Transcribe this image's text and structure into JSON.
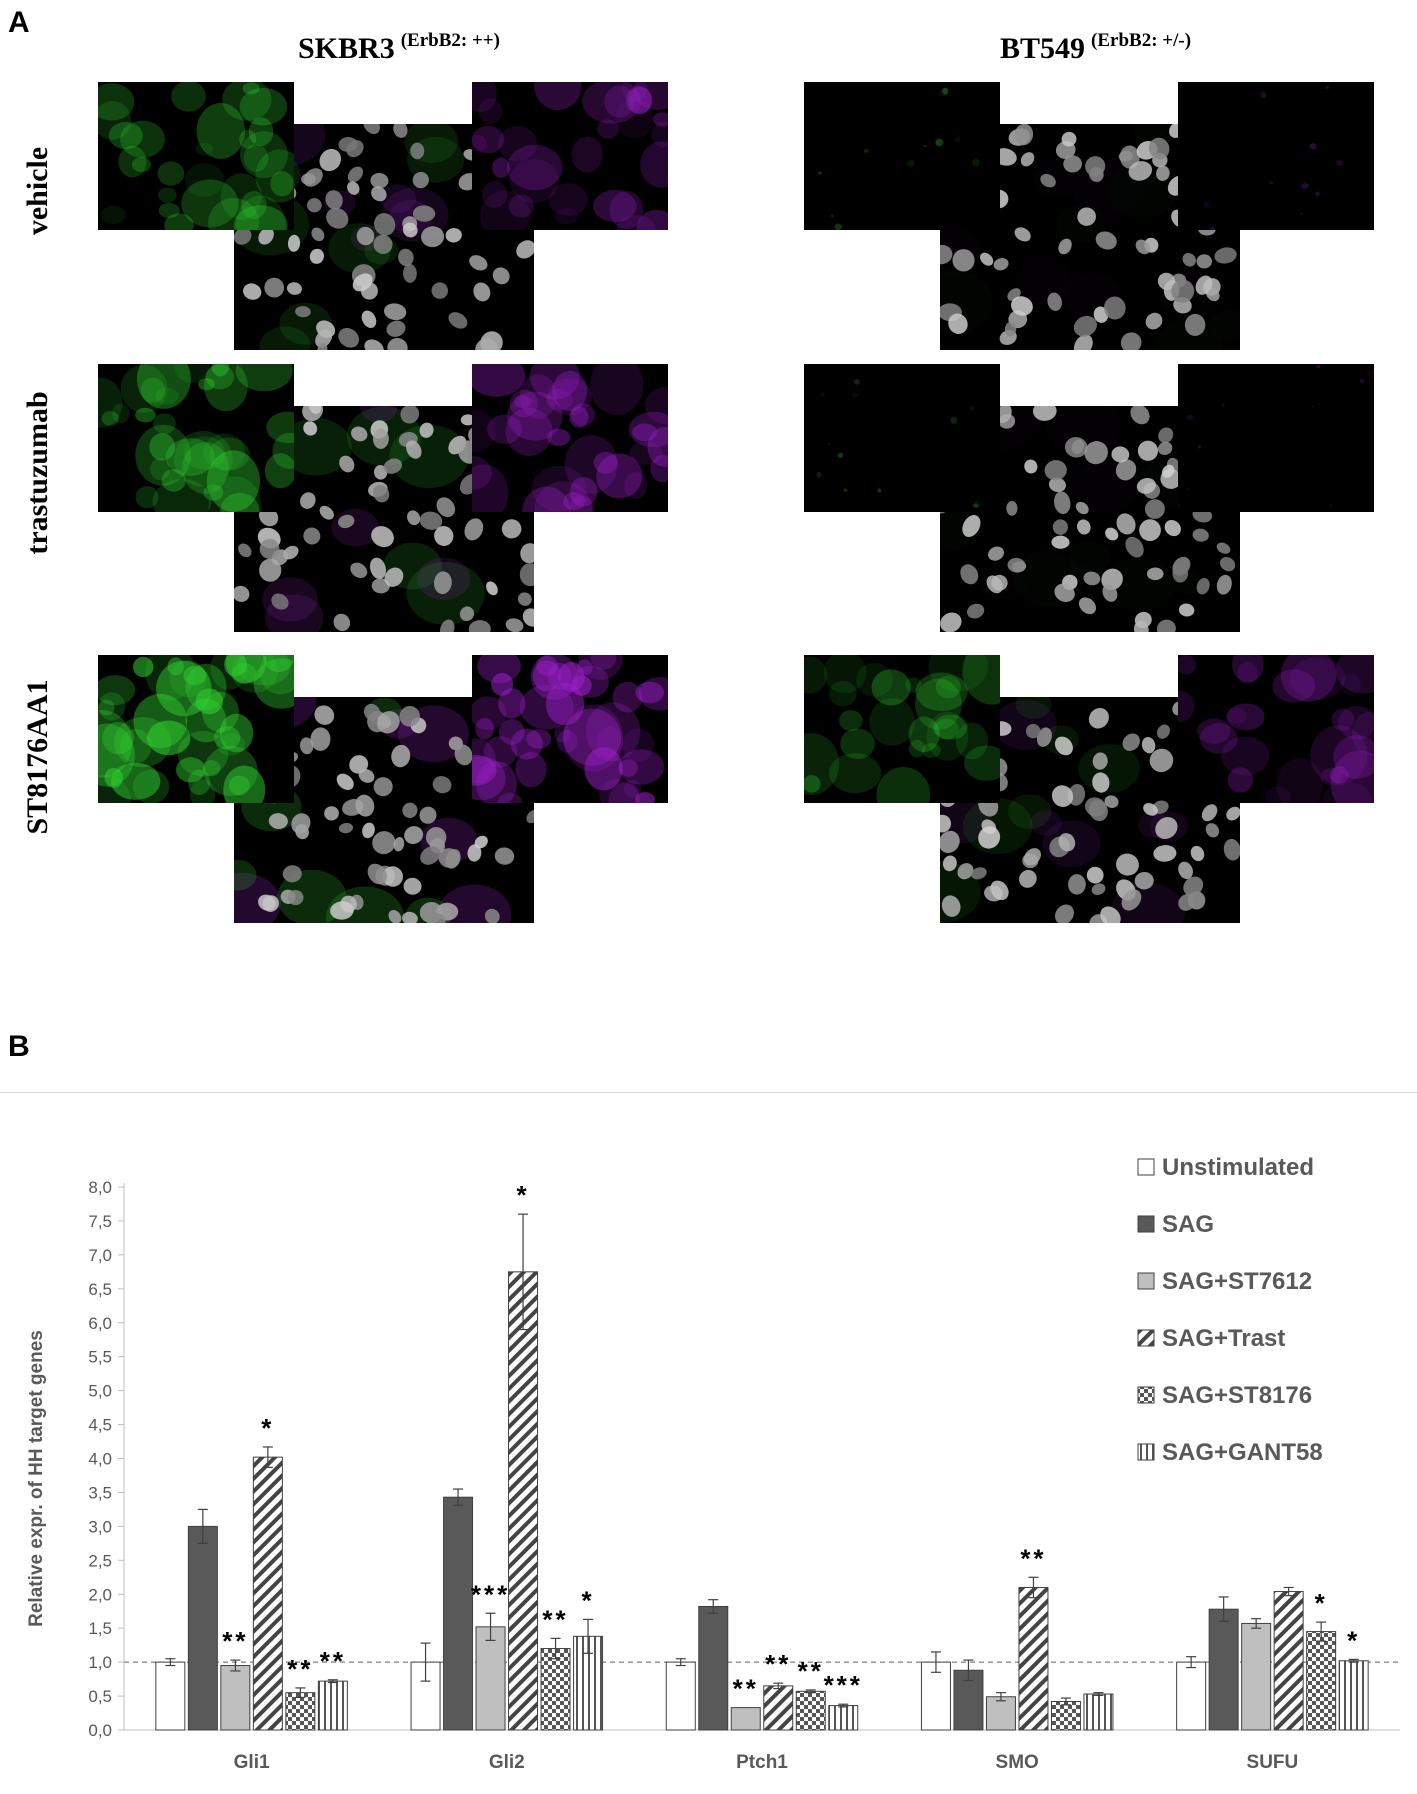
{
  "panel_a": {
    "letter": "A",
    "columns": [
      {
        "name": "SKBR3",
        "sup": "(ErbB2: ++)"
      },
      {
        "name": "BT549",
        "sup": "(ErbB2: +/-)"
      }
    ],
    "rows": [
      "vehicle",
      "trastuzumab",
      "ST8176AA1"
    ]
  },
  "panel_b": {
    "letter": "B"
  },
  "chart_data": {
    "type": "bar",
    "ylabel": "Relative expr. of HH target genes",
    "ylim": [
      0,
      8
    ],
    "yticks": [
      "0,0",
      "0,5",
      "1,0",
      "1,5",
      "2,0",
      "2,5",
      "3,0",
      "3,5",
      "4,0",
      "4,5",
      "5,0",
      "5,5",
      "6,0",
      "6,5",
      "7,0",
      "7,5",
      "8,0"
    ],
    "reference_line": 1.0,
    "categories": [
      "Gli1",
      "Gli2",
      "Ptch1",
      "SMO",
      "SUFU"
    ],
    "legend_position": "top-right",
    "series": [
      {
        "name": "Unstimulated",
        "pattern": "white",
        "values": [
          1.0,
          1.0,
          1.0,
          1.0,
          1.0
        ],
        "errors": [
          0.05,
          0.28,
          0.05,
          0.15,
          0.08
        ],
        "stars": [
          "",
          "",
          "",
          "",
          ""
        ]
      },
      {
        "name": "SAG",
        "pattern": "dark",
        "values": [
          3.0,
          3.43,
          1.82,
          0.88,
          1.78
        ],
        "errors": [
          0.25,
          0.12,
          0.1,
          0.15,
          0.18
        ],
        "stars": [
          "",
          "",
          "",
          "",
          ""
        ]
      },
      {
        "name": "SAG+ST7612",
        "pattern": "gray",
        "values": [
          0.95,
          1.52,
          0.33,
          0.49,
          1.57
        ],
        "errors": [
          0.08,
          0.2,
          0.0,
          0.06,
          0.07
        ],
        "stars": [
          "**",
          "***",
          "**",
          "",
          ""
        ]
      },
      {
        "name": "SAG+Trast",
        "pattern": "diagonal",
        "values": [
          4.02,
          6.75,
          0.65,
          2.1,
          2.04
        ],
        "errors": [
          0.15,
          0.85,
          0.04,
          0.15,
          0.06
        ],
        "stars": [
          "*",
          "*",
          "**",
          "**",
          ""
        ]
      },
      {
        "name": "SAG+ST8176",
        "pattern": "checker",
        "values": [
          0.55,
          1.2,
          0.57,
          0.42,
          1.45
        ],
        "errors": [
          0.07,
          0.15,
          0.02,
          0.05,
          0.14
        ],
        "stars": [
          "**",
          "**",
          "**",
          "",
          "*"
        ]
      },
      {
        "name": "SAG+GANT58",
        "pattern": "vertical",
        "values": [
          0.72,
          1.38,
          0.36,
          0.53,
          1.02
        ],
        "errors": [
          0.02,
          0.25,
          0.02,
          0.02,
          0.02
        ],
        "stars": [
          "**",
          "*",
          "***",
          "",
          "*"
        ]
      }
    ]
  }
}
